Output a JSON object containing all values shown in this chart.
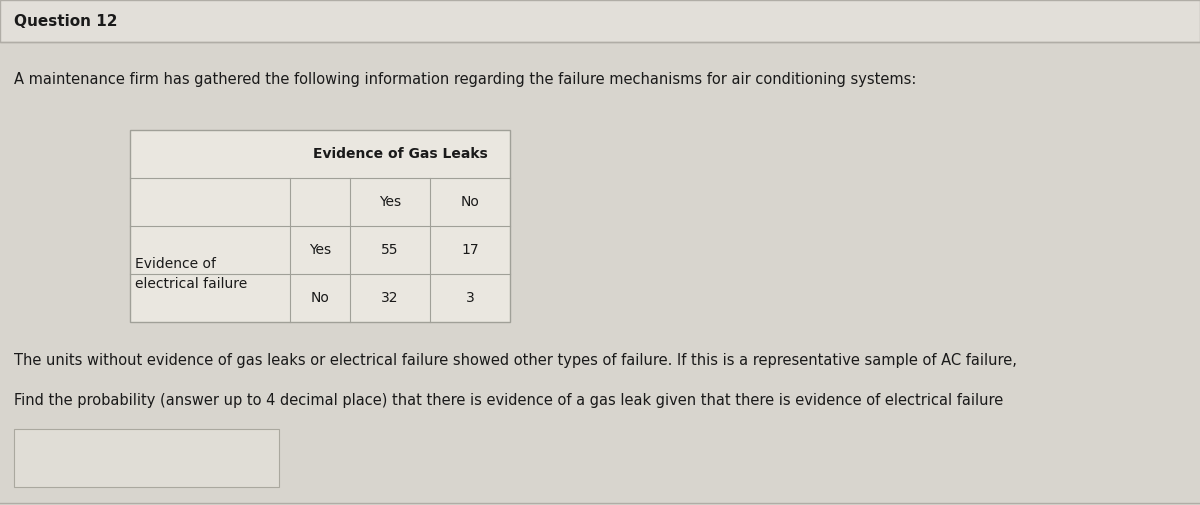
{
  "question_number": "Question 12",
  "intro_text": "A maintenance firm has gathered the following information regarding the failure mechanisms for air conditioning systems:",
  "table_header_main": "Evidence of Gas Leaks",
  "table_col_headers": [
    "Yes",
    "No"
  ],
  "table_row_label_line1": "Evidence of",
  "table_row_label_line2": "electrical failure",
  "table_row_sub_labels": [
    "Yes",
    "No"
  ],
  "table_data": [
    [
      55,
      17
    ],
    [
      32,
      3
    ]
  ],
  "sentence1": "The units without evidence of gas leaks or electrical failure showed other types of failure. If this is a representative sample of AC failure,",
  "sentence2": "Find the probability (answer up to 4 decimal place) that there is evidence of a gas leak given that there is evidence of electrical failure",
  "bg_color": "#d8d5ce",
  "title_bar_color": "#e2dfd9",
  "table_bg": "#eae7e0",
  "answer_box_color": "#e0ddd6",
  "font_color": "#1a1a1a",
  "title_font_size": 11,
  "body_font_size": 10.5,
  "table_font_size": 10
}
